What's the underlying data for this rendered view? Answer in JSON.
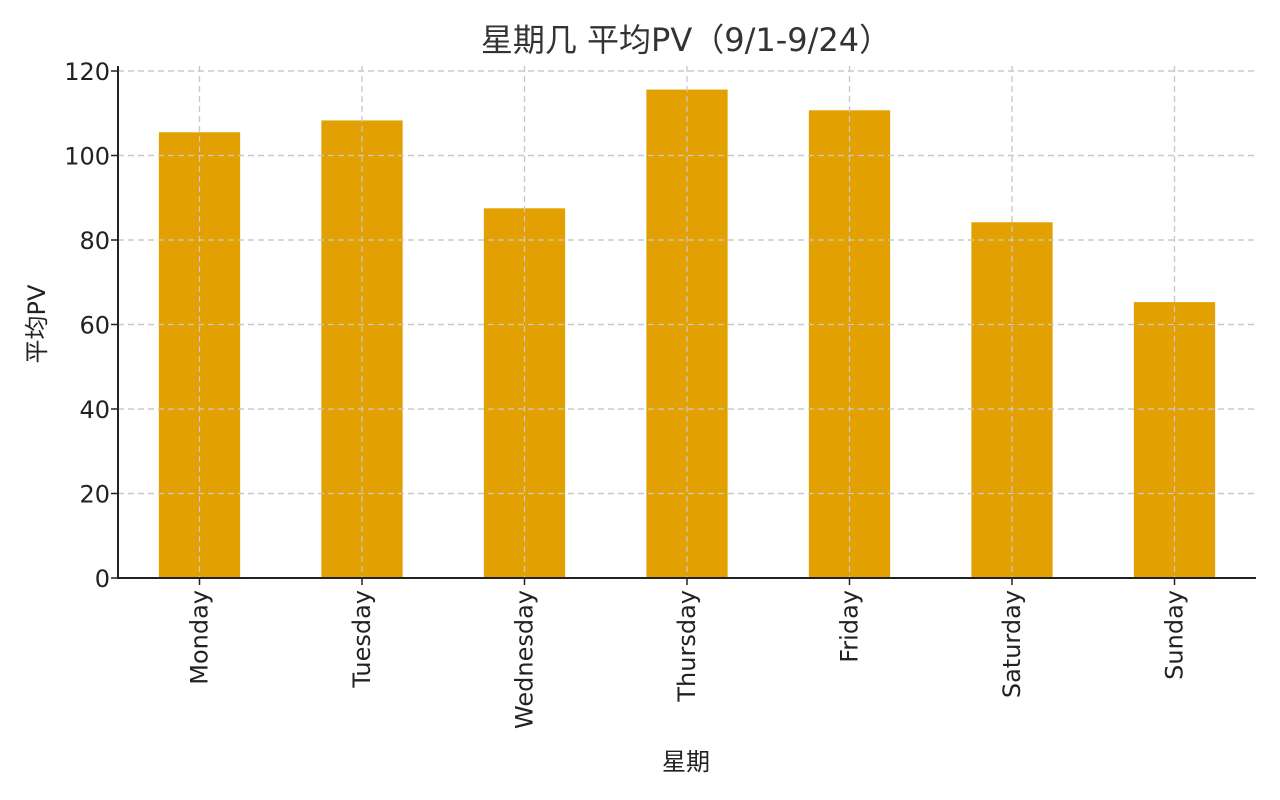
{
  "chart_data": {
    "type": "bar",
    "title": "星期几 平均PV（9/1-9/24）",
    "xlabel": "星期",
    "ylabel": "平均PV",
    "categories": [
      "Monday",
      "Tuesday",
      "Wednesday",
      "Thursday",
      "Friday",
      "Saturday",
      "Sunday"
    ],
    "values": [
      105.5,
      108.3,
      87.5,
      115.6,
      110.7,
      84.2,
      65.3
    ],
    "ylim": [
      0,
      120
    ],
    "yticks": [
      0,
      20,
      40,
      60,
      80,
      100,
      120
    ],
    "grid": true,
    "legend": "none",
    "bar_color": "#E3A002"
  }
}
